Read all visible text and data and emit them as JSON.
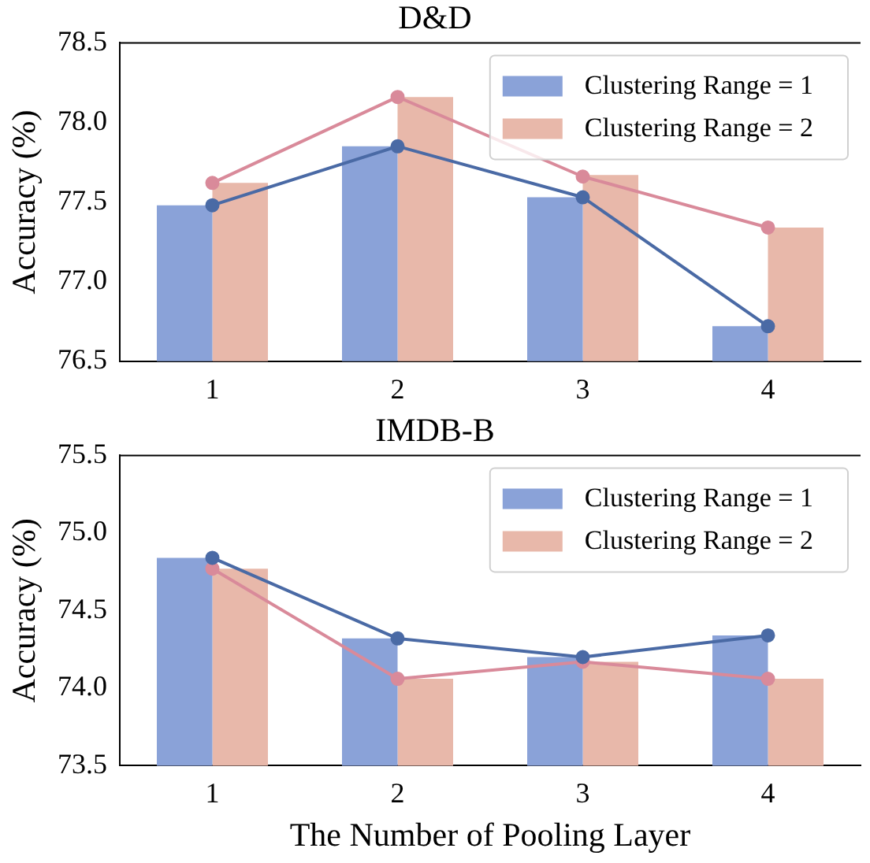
{
  "chart_data": [
    {
      "type": "bar",
      "title": "D&D",
      "ylabel": "Accuracy (%)",
      "categories": [
        "1",
        "2",
        "3",
        "4"
      ],
      "series": [
        {
          "name": "Clustering Range = 1",
          "color": "#8aa2d8",
          "values": [
            77.48,
            77.85,
            77.53,
            76.72
          ]
        },
        {
          "name": "Clustering Range = 2",
          "color": "#e8b8aa",
          "values": [
            77.62,
            78.16,
            77.67,
            77.34
          ]
        },
        {
          "type": "line",
          "color": "#4a6aa5",
          "values": [
            77.48,
            77.85,
            77.53,
            76.72
          ]
        },
        {
          "type": "line",
          "color": "#d98a9a",
          "values": [
            77.62,
            78.16,
            77.66,
            77.34
          ]
        }
      ],
      "ylim": [
        76.5,
        78.5
      ],
      "yticks": [
        {
          "value": 76.5,
          "label": "76.5"
        },
        {
          "value": 77,
          "label": "77.0"
        },
        {
          "value": 77.5,
          "label": "77.5"
        },
        {
          "value": 78,
          "label": "78.0"
        },
        {
          "value": 78.5,
          "label": "78.5"
        }
      ],
      "marker": "circle",
      "legend": "top right",
      "grid": false
    },
    {
      "type": "bar",
      "title": "IMDB-B",
      "xlabel": "The Number of Pooling Layer",
      "ylabel": "Accuracy (%)",
      "categories": [
        "1",
        "2",
        "3",
        "4"
      ],
      "series": [
        {
          "name": "Clustering Range = 1",
          "color": "#8aa2d8",
          "values": [
            74.84,
            74.32,
            74.2,
            74.34
          ]
        },
        {
          "name": "Clustering Range = 2",
          "color": "#e8b8aa",
          "values": [
            74.77,
            74.06,
            74.17,
            74.06
          ]
        },
        {
          "type": "line",
          "color": "#4a6aa5",
          "values": [
            74.84,
            74.32,
            74.2,
            74.34
          ]
        },
        {
          "type": "line",
          "color": "#d98a9a",
          "values": [
            74.77,
            74.06,
            74.17,
            74.06
          ]
        }
      ],
      "ylim": [
        73.5,
        75.5
      ],
      "yticks": [
        {
          "value": 73.5,
          "label": "73.5"
        },
        {
          "value": 74,
          "label": "74.0"
        },
        {
          "value": 74.5,
          "label": "74.5"
        },
        {
          "value": 75,
          "label": "75.0"
        },
        {
          "value": 75.5,
          "label": "75.5"
        }
      ],
      "marker": "circle",
      "legend": "top right",
      "grid": false
    }
  ]
}
